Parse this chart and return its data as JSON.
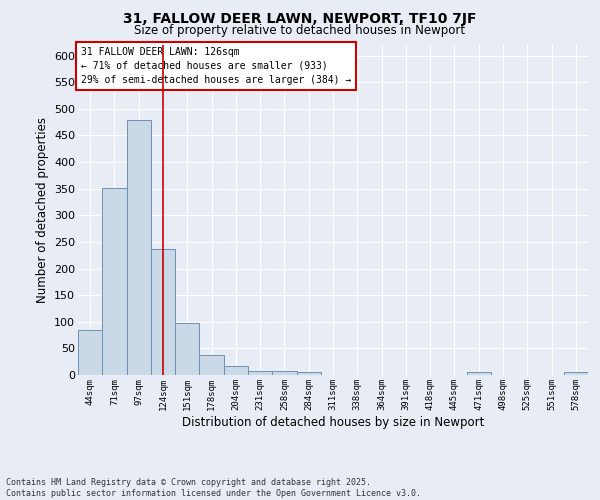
{
  "title": "31, FALLOW DEER LAWN, NEWPORT, TF10 7JF",
  "subtitle": "Size of property relative to detached houses in Newport",
  "xlabel": "Distribution of detached houses by size in Newport",
  "ylabel": "Number of detached properties",
  "footer_line1": "Contains HM Land Registry data © Crown copyright and database right 2025.",
  "footer_line2": "Contains public sector information licensed under the Open Government Licence v3.0.",
  "bar_labels": [
    "44sqm",
    "71sqm",
    "97sqm",
    "124sqm",
    "151sqm",
    "178sqm",
    "204sqm",
    "231sqm",
    "258sqm",
    "284sqm",
    "311sqm",
    "338sqm",
    "364sqm",
    "391sqm",
    "418sqm",
    "445sqm",
    "471sqm",
    "498sqm",
    "525sqm",
    "551sqm",
    "578sqm"
  ],
  "bar_values": [
    85,
    352,
    480,
    237,
    97,
    37,
    16,
    8,
    8,
    6,
    0,
    0,
    0,
    0,
    0,
    0,
    5,
    0,
    0,
    0,
    5
  ],
  "bar_color": "#c9d9e8",
  "bar_edge_color": "#7090b0",
  "background_color": "#e8edf5",
  "grid_color": "#ffffff",
  "red_line_x": 3,
  "annotation_text": "31 FALLOW DEER LAWN: 126sqm\n← 71% of detached houses are smaller (933)\n29% of semi-detached houses are larger (384) →",
  "annotation_box_color": "#ffffff",
  "annotation_box_edge": "#cc0000",
  "red_line_color": "#cc0000",
  "ylim": [
    0,
    620
  ],
  "yticks": [
    0,
    50,
    100,
    150,
    200,
    250,
    300,
    350,
    400,
    450,
    500,
    550,
    600
  ]
}
